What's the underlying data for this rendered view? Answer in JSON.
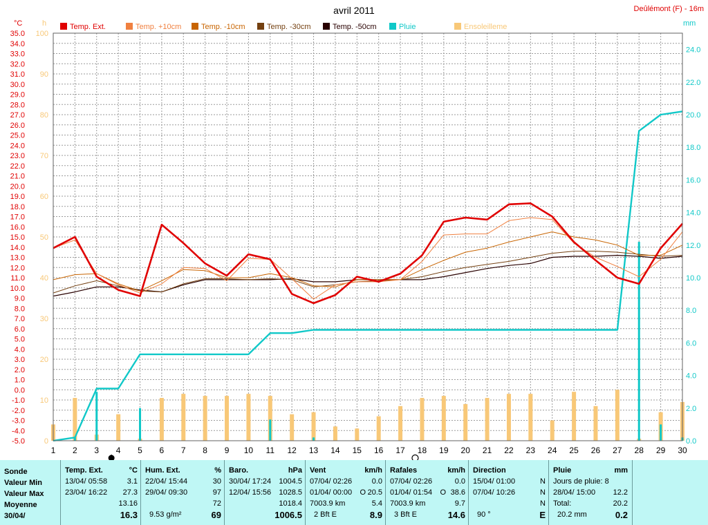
{
  "chart_data": {
    "type": "line",
    "title": "avril 2011",
    "station": "Deûlémont (F) - 16m",
    "left_unit": "°C",
    "left2_unit": "h",
    "right_unit": "mm",
    "x": [
      1,
      2,
      3,
      4,
      5,
      6,
      7,
      8,
      9,
      10,
      11,
      12,
      13,
      14,
      15,
      16,
      17,
      18,
      19,
      20,
      21,
      22,
      23,
      24,
      25,
      26,
      27,
      28,
      29,
      30
    ],
    "temp_ylim": [
      -5,
      35
    ],
    "temp_ticks": [
      "35.0",
      "34.0",
      "33.0",
      "32.0",
      "31.0",
      "30.0",
      "29.0",
      "28.0",
      "27.0",
      "26.0",
      "25.0",
      "24.0",
      "23.0",
      "22.0",
      "21.0",
      "20.0",
      "19.0",
      "18.0",
      "17.0",
      "16.0",
      "15.0",
      "14.0",
      "13.0",
      "12.0",
      "11.0",
      "10.0",
      "9.0",
      "8.0",
      "7.0",
      "6.0",
      "5.0",
      "4.0",
      "3.0",
      "2.0",
      "1.0",
      "0.0",
      "-1.0",
      "-2.0",
      "-3.0",
      "-4.0",
      "-5.0"
    ],
    "sun_ylim": [
      0,
      100
    ],
    "sun_ticks": [
      "100",
      "90",
      "80",
      "70",
      "60",
      "50",
      "40",
      "30",
      "20",
      "10",
      "0"
    ],
    "rain_ylim": [
      0,
      25
    ],
    "rain_ticks": [
      "24.0",
      "22.0",
      "20.0",
      "18.0",
      "16.0",
      "14.0",
      "12.0",
      "10.0",
      "8.0",
      "6.0",
      "4.0",
      "2.0",
      "0.0"
    ],
    "moon_days": [
      4,
      18
    ],
    "series": [
      {
        "name": "Temp. Ext.",
        "color": "#e00000",
        "axis": "temp",
        "width": 2.6,
        "values": [
          13.9,
          15.0,
          11.1,
          9.8,
          9.2,
          16.2,
          14.4,
          12.4,
          11.2,
          13.3,
          12.8,
          9.4,
          8.5,
          9.3,
          11.1,
          10.6,
          11.4,
          13.2,
          16.5,
          16.9,
          16.7,
          18.2,
          18.3,
          17.0,
          14.5,
          12.7,
          11.0,
          10.4,
          13.9,
          16.3
        ]
      },
      {
        "name": "Temp. +10cm",
        "color": "#f08040",
        "axis": "temp",
        "width": 1,
        "values": [
          13.9,
          14.7,
          11.4,
          10.3,
          9.5,
          10.4,
          12.0,
          11.9,
          10.7,
          12.9,
          12.8,
          10.9,
          8.9,
          10.3,
          10.6,
          10.6,
          10.8,
          12.6,
          15.2,
          15.3,
          15.3,
          16.6,
          16.9,
          16.7,
          14.4,
          13.0,
          12.1,
          11.1,
          12.8,
          15.5
        ]
      },
      {
        "name": "Temp. -10cm",
        "color": "#c86400",
        "axis": "temp",
        "width": 1,
        "values": [
          10.8,
          11.3,
          11.4,
          10.4,
          9.7,
          10.7,
          11.8,
          11.7,
          11.0,
          11.0,
          11.4,
          11.0,
          10.2,
          10.1,
          10.8,
          10.8,
          10.8,
          11.8,
          12.7,
          13.5,
          13.9,
          14.5,
          15.0,
          15.5,
          15.0,
          14.7,
          14.2,
          13.2,
          13.2,
          14.2
        ]
      },
      {
        "name": "Temp. -30cm",
        "color": "#744010",
        "axis": "temp",
        "width": 1,
        "values": [
          9.5,
          10.2,
          10.7,
          10.2,
          9.7,
          9.6,
          10.4,
          10.9,
          10.9,
          10.8,
          10.9,
          10.8,
          10.1,
          10.3,
          10.6,
          10.7,
          10.8,
          11.1,
          11.6,
          12.0,
          12.3,
          12.6,
          13.0,
          13.4,
          13.6,
          13.6,
          13.5,
          13.3,
          13.1,
          13.2
        ]
      },
      {
        "name": "Temp. -50cm",
        "color": "#280000",
        "axis": "temp",
        "width": 1.2,
        "values": [
          9.2,
          9.6,
          10.1,
          10.1,
          9.8,
          9.6,
          10.3,
          10.8,
          10.8,
          10.8,
          10.8,
          10.9,
          10.6,
          10.6,
          10.8,
          10.8,
          10.8,
          10.8,
          11.1,
          11.5,
          11.9,
          12.2,
          12.4,
          13.0,
          13.1,
          13.1,
          13.2,
          13.1,
          12.9,
          13.1
        ]
      },
      {
        "name": "Pluie",
        "color": "#10c8c8",
        "axis": "rain",
        "width": 2.4,
        "values": [
          0.0,
          0.2,
          3.2,
          3.2,
          5.3,
          5.3,
          5.3,
          5.3,
          5.3,
          5.3,
          6.6,
          6.6,
          6.8,
          6.8,
          6.8,
          6.8,
          6.8,
          6.8,
          6.8,
          6.8,
          6.8,
          6.8,
          6.8,
          6.8,
          6.8,
          6.8,
          6.8,
          19.0,
          20.0,
          20.2
        ]
      }
    ],
    "sunshine": {
      "name": "Ensoleilleme",
      "color": "#f8c878",
      "values": [
        4.0,
        10.5,
        1.5,
        6.5,
        0.5,
        10.5,
        11.5,
        11.0,
        11.0,
        11.5,
        11.0,
        6.5,
        7.0,
        3.5,
        3.0,
        6.0,
        8.5,
        10.5,
        11.0,
        9.0,
        10.5,
        11.5,
        11.5,
        5.0,
        12.0,
        8.5,
        12.5,
        0.5,
        7.0,
        9.5
      ]
    },
    "daily_rain": {
      "name": "Pluie",
      "color": "#10c8c8",
      "values": [
        0.0,
        0.2,
        3.0,
        0.0,
        2.0,
        0.0,
        0.0,
        0.0,
        0.0,
        0.0,
        1.3,
        0.0,
        0.2,
        0.0,
        0.0,
        0.0,
        0.0,
        0.0,
        0.0,
        0.0,
        0.0,
        0.0,
        0.0,
        0.0,
        0.0,
        0.0,
        0.0,
        12.2,
        1.0,
        0.2
      ]
    }
  },
  "panel": {
    "labels": {
      "sonde": "Sonde",
      "min": "Valeur Min",
      "max": "Valeur Max",
      "moy": "Moyenne",
      "date": "30/04/"
    },
    "temp": {
      "title": "Temp. Ext.",
      "unit": "°C",
      "min_date": "13/04/ 05:58",
      "min_val": "3.1",
      "max_date": "23/04/ 16:22",
      "max_val": "27.3",
      "moy": "13.16",
      "cur": "16.3"
    },
    "hum": {
      "title": "Hum. Ext.",
      "unit": "%",
      "min_date": "22/04/ 15:44",
      "min_val": "30",
      "max_date": "29/04/ 09:30",
      "max_val": "97",
      "moy": "72",
      "extra": "9.53 g/m²",
      "cur": "69"
    },
    "baro": {
      "title": "Baro.",
      "unit": "hPa",
      "min_date": "30/04/ 17:24",
      "min_val": "1004.5",
      "max_date": "12/04/ 15:56",
      "max_val": "1028.5",
      "moy": "1018.4",
      "cur": "1006.5"
    },
    "vent": {
      "title": "Vent",
      "unit": "km/h",
      "min_date": "07/04/ 02:26",
      "min_val": "0.0",
      "max_date": "01/04/ 00:00",
      "max_o": "O",
      "max_val": "20.5",
      "moy_txt": "7003.9 km",
      "moy": "5.4",
      "extra": "2 Bft E",
      "cur": "8.9"
    },
    "raf": {
      "title": "Rafales",
      "unit": "km/h",
      "min_date": "07/04/ 02:26",
      "min_val": "0.0",
      "max_date": "01/04/ 01:54",
      "max_o": "O",
      "max_val": "38.6",
      "moy_txt": "7003.9 km",
      "moy": "9.7",
      "extra": "3 Bft E",
      "cur": "14.6"
    },
    "dir": {
      "title": "Direction",
      "min_date": "15/04/ 01:00",
      "min_val": "N",
      "max_date": "07/04/ 10:26",
      "max_val": "N",
      "moy": "N",
      "extra": "90 °",
      "cur": "E"
    },
    "pluie": {
      "title": "Pluie",
      "unit": "mm",
      "jours": "Jours de pluie: 8",
      "max_date": "28/04/ 15:00",
      "max_val": "12.2",
      "total_lbl": "Total:",
      "total_val": "20.2",
      "extra": "20.2 mm",
      "cur": "0.2"
    }
  }
}
